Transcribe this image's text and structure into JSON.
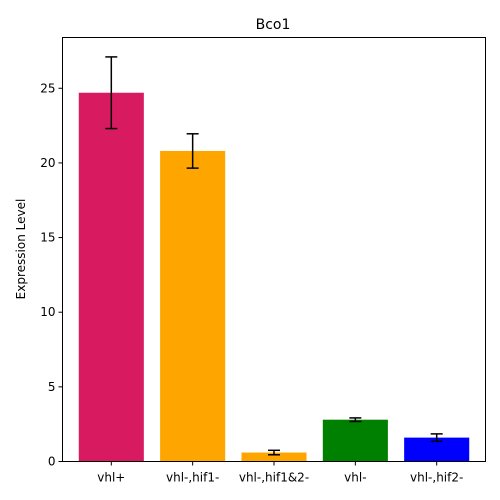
{
  "chart_data": {
    "type": "bar",
    "title": "Bco1",
    "xlabel": "",
    "ylabel": "Expression Level",
    "categories": [
      "vhl+",
      "vhl-,hif1-",
      "vhl-,hif1&2-",
      "vhl-",
      "vhl-,hif2-"
    ],
    "values": [
      24.7,
      20.8,
      0.6,
      2.8,
      1.6
    ],
    "errors": [
      2.4,
      1.15,
      0.15,
      0.12,
      0.25
    ],
    "colors": [
      "#d81b60",
      "#ffa500",
      "#ffa500",
      "#008000",
      "#0000ff"
    ],
    "ylim": [
      0,
      28.4
    ],
    "yticks": [
      0,
      5,
      10,
      15,
      20,
      25
    ],
    "grid": false,
    "legend": "none"
  }
}
